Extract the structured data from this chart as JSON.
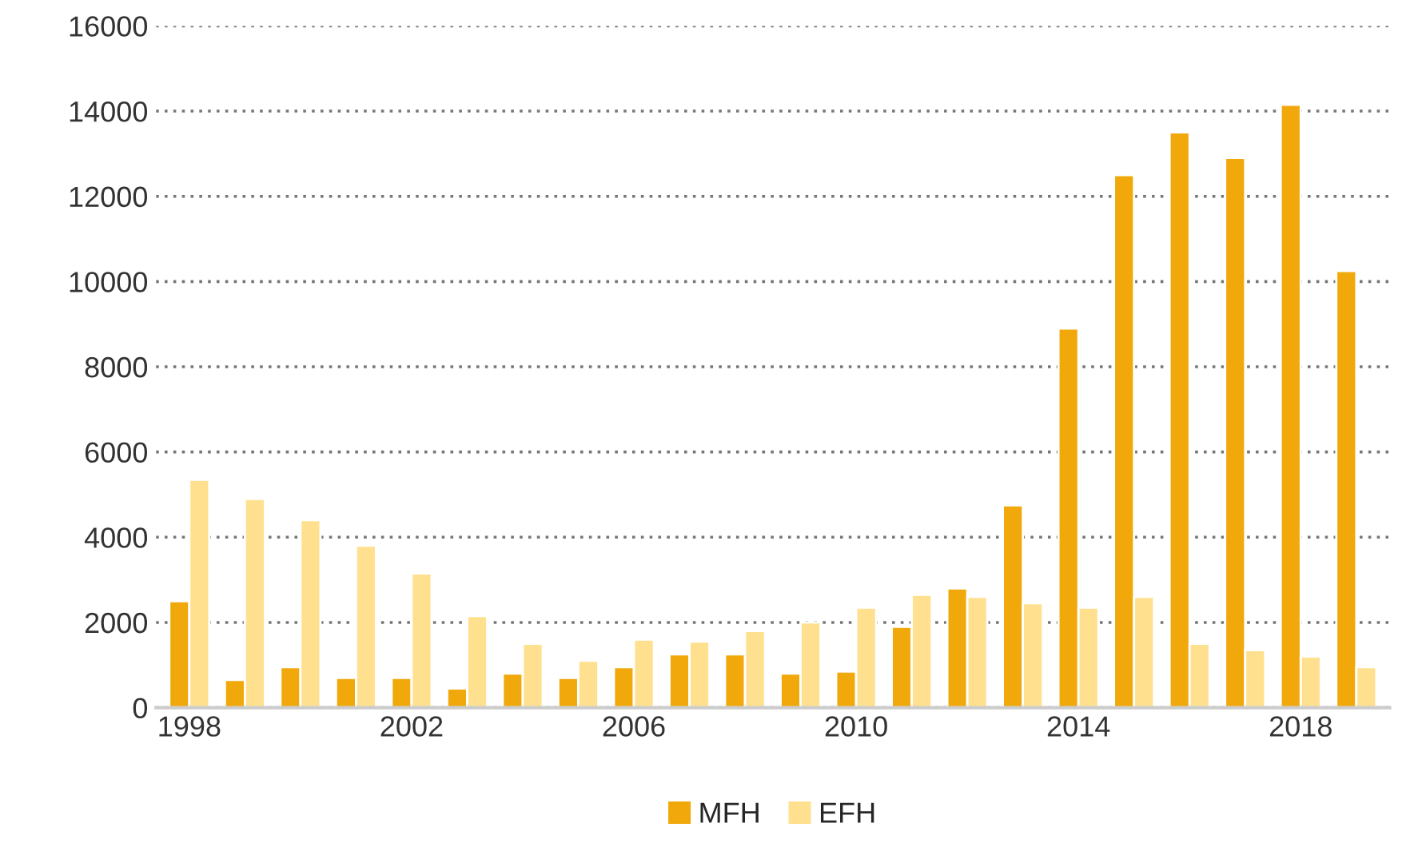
{
  "chart_data": {
    "type": "bar",
    "categories": [
      "1998",
      null,
      null,
      null,
      "2002",
      null,
      null,
      null,
      "2006",
      null,
      null,
      null,
      "2010",
      null,
      null,
      null,
      "2014",
      null,
      null,
      null,
      "2018",
      null
    ],
    "series": [
      {
        "name": "MFH",
        "color": "#f0a80a",
        "values": [
          2500,
          650,
          950,
          700,
          700,
          450,
          800,
          700,
          950,
          1250,
          1250,
          800,
          850,
          1900,
          2800,
          4750,
          8900,
          12500,
          13500,
          12900,
          14150,
          10250
        ]
      },
      {
        "name": "EFH",
        "color": "#fee08f",
        "values": [
          5350,
          4900,
          4400,
          3800,
          3150,
          2150,
          1500,
          1100,
          1600,
          1550,
          1800,
          2000,
          2350,
          2650,
          2600,
          2450,
          2350,
          2600,
          1500,
          1350,
          1200,
          950
        ]
      }
    ],
    "ylim": [
      0,
      16000
    ],
    "yticks": [
      0,
      2000,
      4000,
      6000,
      8000,
      10000,
      12000,
      14000,
      16000
    ],
    "grid": "y",
    "legend": "bottom"
  }
}
